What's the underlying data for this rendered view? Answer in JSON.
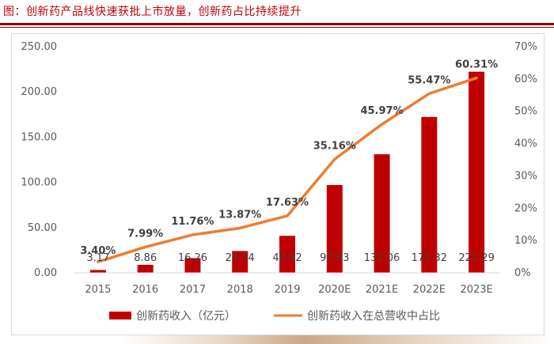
{
  "figure": {
    "title": "图：创新药产品线快速获批上市放量，创新药占比持续提升"
  },
  "colors": {
    "bar": "#c00000",
    "line": "#ed7d31",
    "title": "#c00000",
    "rule": "#8b0000"
  },
  "chart_data": {
    "type": "bar+line",
    "categories": [
      "2015",
      "2016",
      "2017",
      "2018",
      "2019",
      "2020E",
      "2021E",
      "2022E",
      "2023E"
    ],
    "series": [
      {
        "name": "创新药收入（亿元）",
        "type": "bar",
        "axis": "left",
        "values": [
          3.17,
          8.86,
          16.26,
          24.14,
          40.92,
          97.03,
          131.06,
          172.32,
          222.29
        ],
        "labels": [
          "3.17",
          "8.86",
          "16.26",
          "24.14",
          "40.92",
          "97.03",
          "131.06",
          "172.32",
          "222.29"
        ]
      },
      {
        "name": "创新药收入在总营收中占比",
        "type": "line",
        "axis": "right",
        "values": [
          3.4,
          7.99,
          11.76,
          13.87,
          17.63,
          35.16,
          45.97,
          55.47,
          60.31
        ],
        "labels": [
          "3.40%",
          "7.99%",
          "11.76%",
          "13.87%",
          "17.63%",
          "35.16%",
          "45.97%",
          "55.47%",
          "60.31%"
        ]
      }
    ],
    "y_left": {
      "min": 0,
      "max": 250,
      "ticks": [
        "0.00",
        "50.00",
        "100.00",
        "150.00",
        "200.00",
        "250.00"
      ]
    },
    "y_right": {
      "min": 0,
      "max": 70,
      "ticks": [
        "0%",
        "10%",
        "20%",
        "30%",
        "40%",
        "50%",
        "60%",
        "70%"
      ]
    },
    "grid": false,
    "legend_position": "bottom"
  }
}
